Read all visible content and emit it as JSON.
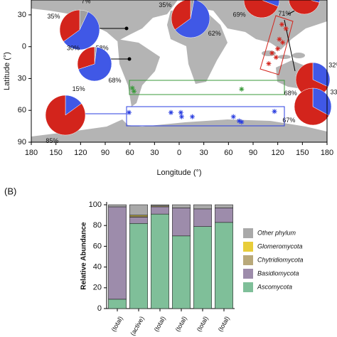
{
  "chart_data": [
    {
      "type": "map",
      "xlabel": "Longitude (°)",
      "ylabel": "Latitude (°)",
      "xlim": [
        -180,
        180
      ],
      "xticks": [
        {
          "value": -180,
          "label": "180"
        },
        {
          "value": -150,
          "label": "150"
        },
        {
          "value": -120,
          "label": "120"
        },
        {
          "value": -90,
          "label": "90"
        },
        {
          "value": -60,
          "label": "60"
        },
        {
          "value": -30,
          "label": "30"
        },
        0,
        30,
        60,
        90,
        120,
        150,
        180
      ],
      "ylim": [
        -90,
        44
      ],
      "yticks": [
        {
          "value": -90,
          "label": "90"
        },
        {
          "value": -60,
          "label": "60"
        },
        {
          "value": -30,
          "label": "30"
        },
        0,
        30
      ],
      "pie_colors": [
        "#a0a0a0",
        "#4058e6",
        "#d3241c"
      ],
      "pies": [
        {
          "values": [
            7,
            58,
            35
          ],
          "value_labels": [
            "7%",
            "58%",
            "35%"
          ]
        },
        {
          "values": [
            2,
            68,
            30
          ],
          "value_labels": [
            null,
            "68%",
            "30%"
          ]
        },
        {
          "values": [
            3,
            62,
            35
          ],
          "value_labels": [
            "3%",
            "62%",
            "35%"
          ]
        },
        {
          "values": [
            0,
            31,
            69
          ],
          "value_labels": [
            null,
            null,
            "69%"
          ]
        },
        {
          "values": [
            0,
            29,
            71
          ],
          "value_labels": [
            null,
            null,
            "71%"
          ]
        },
        {
          "values": [
            0,
            32,
            68
          ],
          "value_labels": [
            null,
            "32%",
            "68%"
          ]
        },
        {
          "values": [
            0,
            33,
            67
          ],
          "value_labels": [
            null,
            "33%",
            "67%"
          ]
        },
        {
          "values": [
            0,
            15,
            85
          ],
          "value_labels": [
            null,
            "15%",
            "85%"
          ]
        }
      ],
      "series": [
        {
          "color": "#3a9a3a",
          "x": [
            -57,
            -55,
            76
          ],
          "y": [
            -39,
            -42,
            -40
          ]
        },
        {
          "color": "#2a3ee0",
          "x": [
            -61,
            -10,
            2,
            3,
            16,
            66,
            73,
            76,
            116
          ],
          "y": [
            -62,
            -62,
            -62,
            -66,
            -66,
            -66,
            -70,
            -71,
            -61
          ]
        },
        {
          "color": "#d3241c",
          "x": [
            125,
            130,
            122,
            126,
            113,
            118,
            109,
            120
          ],
          "y": [
            21,
            17,
            7,
            4,
            -6,
            -10,
            -16,
            -2
          ]
        }
      ]
    },
    {
      "type": "bar",
      "stacked": true,
      "panel_label": "(B)",
      "ylabel": "Relative Abundance",
      "categories": [
        "(total)",
        "(active)",
        "(total)",
        "(total)",
        "(total)",
        "(total)"
      ],
      "ylim": [
        0,
        100
      ],
      "yticks": [
        0,
        20,
        40,
        60,
        80,
        100
      ],
      "series": [
        {
          "name": "Ascomycota",
          "color": "#7fbf99",
          "values": [
            9,
            82,
            91,
            70,
            79,
            83
          ]
        },
        {
          "name": "Basidiomycota",
          "color": "#9d8cab",
          "values": [
            89,
            6,
            7,
            27,
            17,
            14
          ]
        },
        {
          "name": "Chytridiomycota",
          "color": "#b9a97a",
          "values": [
            0,
            1,
            1,
            0,
            0,
            0
          ]
        },
        {
          "name": "Glomeromycota",
          "color": "#e8cd3a",
          "values": [
            0,
            1,
            0,
            0,
            0,
            0
          ]
        },
        {
          "name": "Other phylum",
          "color": "#a9a9a9",
          "values": [
            2,
            10,
            1,
            3,
            4,
            3
          ]
        }
      ]
    }
  ]
}
